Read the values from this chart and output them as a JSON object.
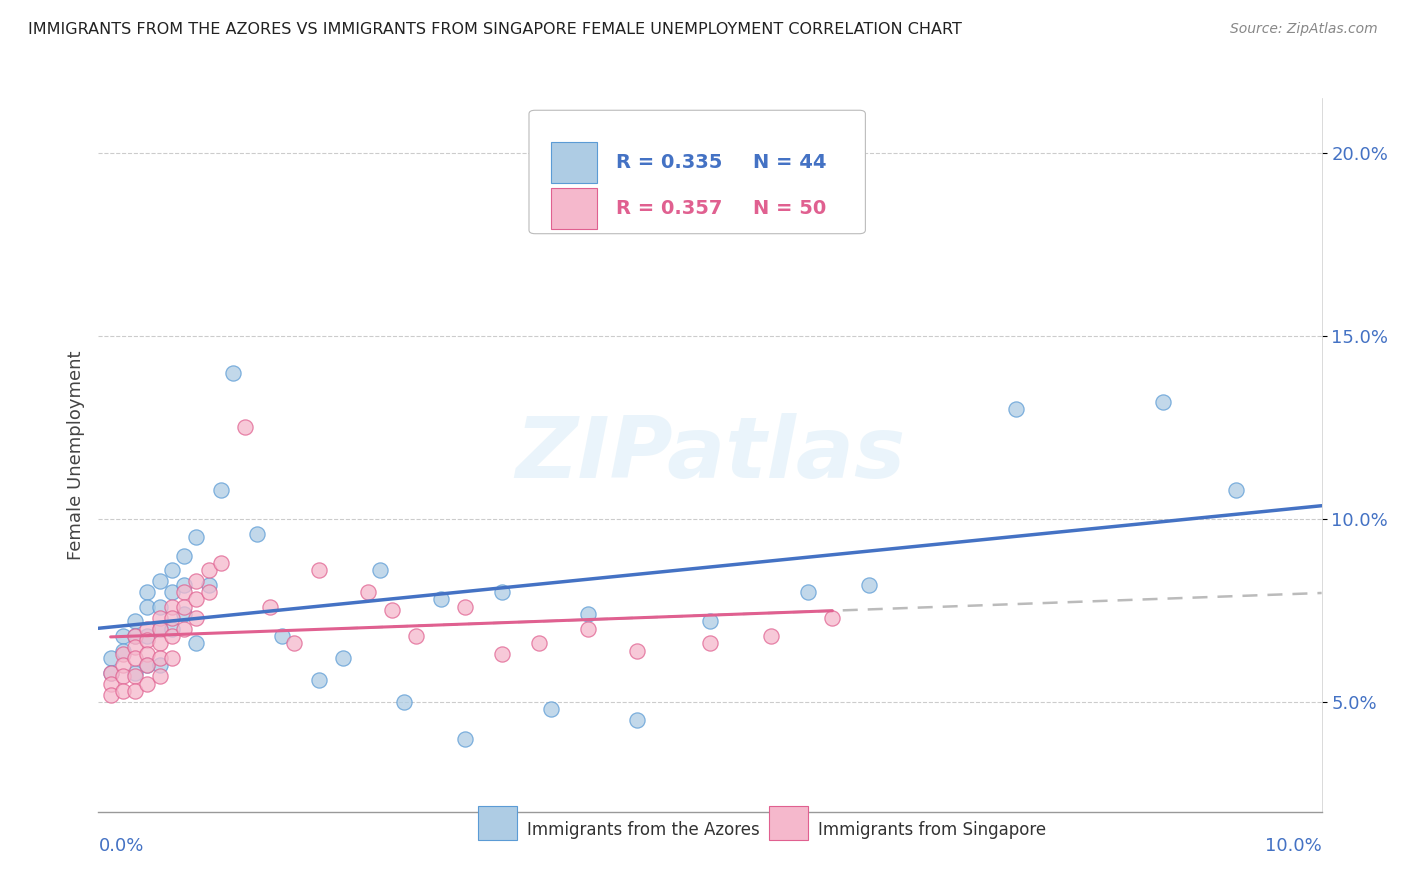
{
  "title": "IMMIGRANTS FROM THE AZORES VS IMMIGRANTS FROM SINGAPORE FEMALE UNEMPLOYMENT CORRELATION CHART",
  "source": "Source: ZipAtlas.com",
  "ylabel": "Female Unemployment",
  "legend_azores": "Immigrants from the Azores",
  "legend_singapore": "Immigrants from Singapore",
  "r_azores": "R = 0.335",
  "n_azores": "N = 44",
  "r_singapore": "R = 0.357",
  "n_singapore": "N = 50",
  "color_azores": "#aecce4",
  "color_singapore": "#f5b8cc",
  "edge_azores": "#5b9bd5",
  "edge_singapore": "#e06090",
  "line_azores": "#4472c4",
  "line_singapore": "#e06090",
  "line_gray": "#bbbbbb",
  "ytick_vals": [
    0.05,
    0.1,
    0.15,
    0.2
  ],
  "ytick_labels": [
    "5.0%",
    "10.0%",
    "15.0%",
    "20.0%"
  ],
  "xlim": [
    0.0,
    0.1
  ],
  "ylim": [
    0.02,
    0.215
  ],
  "azores_x": [
    0.001,
    0.001,
    0.002,
    0.002,
    0.003,
    0.003,
    0.003,
    0.004,
    0.004,
    0.004,
    0.004,
    0.005,
    0.005,
    0.005,
    0.005,
    0.006,
    0.006,
    0.006,
    0.007,
    0.007,
    0.007,
    0.008,
    0.008,
    0.009,
    0.01,
    0.011,
    0.013,
    0.015,
    0.018,
    0.02,
    0.023,
    0.025,
    0.028,
    0.03,
    0.033,
    0.037,
    0.04,
    0.044,
    0.05,
    0.058,
    0.063,
    0.075,
    0.087,
    0.093
  ],
  "azores_y": [
    0.062,
    0.058,
    0.068,
    0.064,
    0.072,
    0.068,
    0.058,
    0.08,
    0.076,
    0.068,
    0.06,
    0.083,
    0.076,
    0.07,
    0.06,
    0.086,
    0.08,
    0.07,
    0.09,
    0.082,
    0.074,
    0.095,
    0.066,
    0.082,
    0.108,
    0.14,
    0.096,
    0.068,
    0.056,
    0.062,
    0.086,
    0.05,
    0.078,
    0.04,
    0.08,
    0.048,
    0.074,
    0.045,
    0.072,
    0.08,
    0.082,
    0.13,
    0.132,
    0.108
  ],
  "singapore_x": [
    0.001,
    0.001,
    0.001,
    0.002,
    0.002,
    0.002,
    0.002,
    0.003,
    0.003,
    0.003,
    0.003,
    0.003,
    0.004,
    0.004,
    0.004,
    0.004,
    0.004,
    0.005,
    0.005,
    0.005,
    0.005,
    0.005,
    0.006,
    0.006,
    0.006,
    0.006,
    0.007,
    0.007,
    0.007,
    0.008,
    0.008,
    0.008,
    0.009,
    0.009,
    0.01,
    0.012,
    0.014,
    0.016,
    0.018,
    0.022,
    0.024,
    0.026,
    0.03,
    0.033,
    0.036,
    0.04,
    0.044,
    0.05,
    0.055,
    0.06
  ],
  "singapore_y": [
    0.058,
    0.055,
    0.052,
    0.063,
    0.06,
    0.057,
    0.053,
    0.068,
    0.065,
    0.062,
    0.057,
    0.053,
    0.07,
    0.067,
    0.063,
    0.06,
    0.055,
    0.073,
    0.07,
    0.066,
    0.062,
    0.057,
    0.076,
    0.073,
    0.068,
    0.062,
    0.08,
    0.076,
    0.07,
    0.083,
    0.078,
    0.073,
    0.086,
    0.08,
    0.088,
    0.125,
    0.076,
    0.066,
    0.086,
    0.08,
    0.075,
    0.068,
    0.076,
    0.063,
    0.066,
    0.07,
    0.064,
    0.066,
    0.068,
    0.073
  ]
}
